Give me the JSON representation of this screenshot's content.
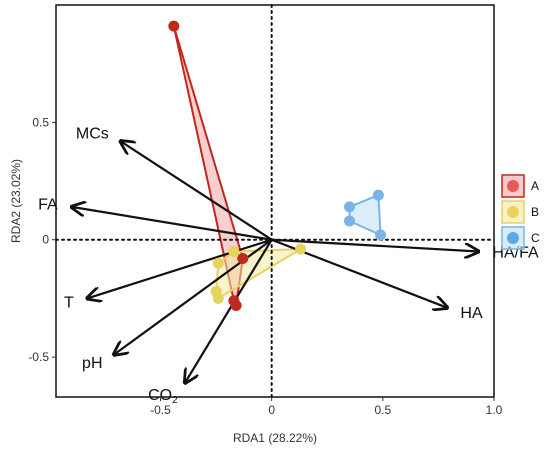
{
  "chart_data": {
    "type": "scatter",
    "xlabel": "RDA1 (28.22%)",
    "ylabel": "RDA2 (23.02%)",
    "xlim": [
      -0.97,
      1.0
    ],
    "ylim": [
      -0.67,
      1.0
    ],
    "xticks": [
      {
        "value": -0.5,
        "label": "-0.5"
      },
      {
        "value": 0,
        "label": "0"
      },
      {
        "value": 0.5,
        "label": "0.5"
      },
      {
        "value": 1.0,
        "label": "1.0"
      }
    ],
    "yticks": [
      {
        "value": 0.5,
        "label": "0.5"
      },
      {
        "value": 0,
        "label": "0"
      },
      {
        "value": -0.5,
        "label": "-0.5"
      }
    ],
    "reference_lines": {
      "x": 0,
      "y": 0,
      "style": "dotted"
    },
    "series": [
      {
        "name": "A",
        "color": "#e85a5a",
        "point_color": "#c0281e",
        "hull_fill": "#f2a7a7",
        "points": [
          [
            -0.44,
            0.91
          ],
          [
            -0.17,
            -0.26
          ],
          [
            -0.16,
            -0.28
          ],
          [
            -0.13,
            -0.08
          ]
        ],
        "hull": [
          [
            -0.44,
            0.91
          ],
          [
            -0.13,
            -0.08
          ],
          [
            -0.16,
            -0.28
          ],
          [
            -0.17,
            -0.26
          ]
        ]
      },
      {
        "name": "B",
        "color": "#e8d45a",
        "point_color": "#e6d35e",
        "hull_fill": "#f3e7a4",
        "points": [
          [
            -0.24,
            -0.1
          ],
          [
            -0.25,
            -0.22
          ],
          [
            -0.24,
            -0.25
          ],
          [
            0.13,
            -0.04
          ],
          [
            -0.17,
            -0.05
          ]
        ],
        "hull": [
          [
            -0.24,
            -0.1
          ],
          [
            -0.17,
            -0.05
          ],
          [
            0.13,
            -0.04
          ],
          [
            -0.24,
            -0.25
          ],
          [
            -0.25,
            -0.22
          ]
        ]
      },
      {
        "name": "C",
        "color": "#5aa9e6",
        "point_color": "#7ab3e8",
        "hull_fill": "#bfe0f5",
        "points": [
          [
            0.35,
            0.14
          ],
          [
            0.48,
            0.19
          ],
          [
            0.35,
            0.08
          ],
          [
            0.49,
            0.02
          ]
        ],
        "hull": [
          [
            0.35,
            0.14
          ],
          [
            0.48,
            0.19
          ],
          [
            0.49,
            0.02
          ],
          [
            0.35,
            0.08
          ]
        ]
      }
    ],
    "vectors": [
      {
        "label": "MCs",
        "x": -0.68,
        "y": 0.42
      },
      {
        "label": "FA",
        "x": -0.9,
        "y": 0.14
      },
      {
        "label": "T",
        "x": -0.83,
        "y": -0.25
      },
      {
        "label": "pH",
        "x": -0.71,
        "y": -0.49
      },
      {
        "label": "CO",
        "sub": "2",
        "x": -0.39,
        "y": -0.61
      },
      {
        "label": "HA/FA",
        "x": 0.93,
        "y": -0.05
      },
      {
        "label": "HA",
        "x": 0.79,
        "y": -0.29
      }
    ],
    "legend": {
      "position": "right",
      "items": [
        "A",
        "B",
        "C"
      ]
    }
  }
}
